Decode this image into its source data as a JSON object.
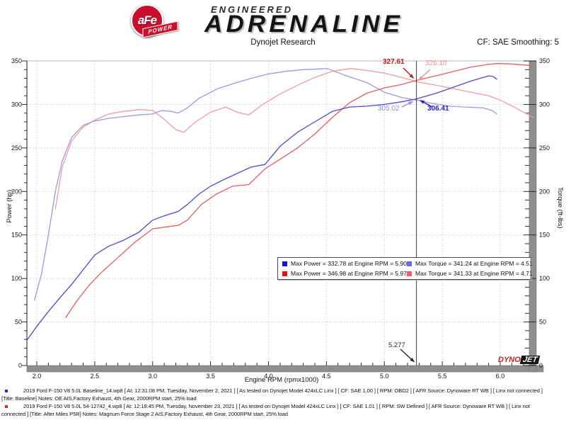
{
  "header": {
    "brand": {
      "badge_line1": "aFe",
      "badge_line2": "POWER",
      "engineered": "ENGINEERED",
      "adrenaline": "ADRENALINE"
    },
    "title": "Dynojet Research",
    "correction": "CF: SAE Smoothing: 5"
  },
  "chart_data": {
    "type": "line",
    "title": "Dynojet Research",
    "xlabel": "Engine RPM (rpmx1000)",
    "ylabel_left": "Power (hp)",
    "ylabel_right": "Torque (ft-lbs)",
    "xlim": [
      1.9,
      6.33
    ],
    "ylim": [
      0,
      350
    ],
    "x_ticks": [
      "2.0",
      "2.5",
      "3.0",
      "3.5",
      "4.0",
      "4.5",
      "5.0",
      "5.5",
      "6.0"
    ],
    "y_ticks": [
      0,
      50,
      100,
      150,
      200,
      250,
      300,
      350
    ],
    "grid": "dotted",
    "legend_position": "center-box",
    "cursor": {
      "rpm": 5.277,
      "label": "5.277"
    },
    "series": [
      {
        "name": "Baseline Power",
        "unit": "hp",
        "color": "#4a4ad2",
        "legend_color": "#1414dd",
        "max_label": "Max Power = 332.78 at Engine RPM = 5.90",
        "cursor_value": "306.41",
        "points": [
          [
            1.92,
            30
          ],
          [
            2.0,
            45
          ],
          [
            2.1,
            62
          ],
          [
            2.2,
            78
          ],
          [
            2.3,
            93
          ],
          [
            2.4,
            110
          ],
          [
            2.5,
            127
          ],
          [
            2.62,
            137
          ],
          [
            2.75,
            144
          ],
          [
            2.88,
            153
          ],
          [
            3.0,
            167
          ],
          [
            3.1,
            172
          ],
          [
            3.22,
            177
          ],
          [
            3.3,
            185
          ],
          [
            3.4,
            197
          ],
          [
            3.5,
            206
          ],
          [
            3.62,
            214
          ],
          [
            3.75,
            222
          ],
          [
            3.85,
            228
          ],
          [
            3.97,
            231
          ],
          [
            4.1,
            252
          ],
          [
            4.25,
            268
          ],
          [
            4.4,
            280
          ],
          [
            4.55,
            292
          ],
          [
            4.7,
            297
          ],
          [
            4.85,
            298
          ],
          [
            5.0,
            300
          ],
          [
            5.15,
            303
          ],
          [
            5.277,
            306.4
          ],
          [
            5.45,
            313
          ],
          [
            5.6,
            320
          ],
          [
            5.75,
            327
          ],
          [
            5.9,
            332.8
          ],
          [
            5.94,
            332
          ],
          [
            5.97,
            329
          ]
        ]
      },
      {
        "name": "Baseline Torque",
        "unit": "ft-lbs",
        "color": "#9a9ae2",
        "legend_color": "#6a6ae6",
        "max_label": "Max Torque = 341.24 at Engine RPM = 4.51",
        "cursor_value": "305.02",
        "points": [
          [
            1.98,
            75
          ],
          [
            2.04,
            105
          ],
          [
            2.1,
            150
          ],
          [
            2.16,
            200
          ],
          [
            2.22,
            235
          ],
          [
            2.3,
            262
          ],
          [
            2.4,
            276
          ],
          [
            2.5,
            281
          ],
          [
            2.62,
            284
          ],
          [
            2.75,
            286
          ],
          [
            2.88,
            288
          ],
          [
            3.0,
            289
          ],
          [
            3.08,
            293
          ],
          [
            3.16,
            292
          ],
          [
            3.22,
            290
          ],
          [
            3.3,
            296
          ],
          [
            3.4,
            307
          ],
          [
            3.56,
            318
          ],
          [
            3.7,
            324
          ],
          [
            3.85,
            330
          ],
          [
            4.0,
            335
          ],
          [
            4.15,
            338
          ],
          [
            4.3,
            340
          ],
          [
            4.51,
            341.2
          ],
          [
            4.65,
            334
          ],
          [
            4.85,
            325
          ],
          [
            5.0,
            314
          ],
          [
            5.15,
            308
          ],
          [
            5.277,
            305
          ],
          [
            5.42,
            301
          ],
          [
            5.56,
            298
          ],
          [
            5.7,
            297
          ],
          [
            5.85,
            296
          ],
          [
            5.93,
            293
          ],
          [
            5.97,
            289
          ]
        ]
      },
      {
        "name": "After Power",
        "unit": "hp",
        "color": "#df5f5f",
        "legend_color": "#e01414",
        "max_label": "Max Power = 346.98 at Engine RPM = 5.97",
        "cursor_value": "327.61",
        "points": [
          [
            2.25,
            55
          ],
          [
            2.35,
            75
          ],
          [
            2.45,
            92
          ],
          [
            2.55,
            106
          ],
          [
            2.7,
            124
          ],
          [
            2.85,
            142
          ],
          [
            3.0,
            157
          ],
          [
            3.1,
            159
          ],
          [
            3.22,
            161
          ],
          [
            3.3,
            167
          ],
          [
            3.42,
            185
          ],
          [
            3.55,
            197
          ],
          [
            3.69,
            206
          ],
          [
            3.83,
            208
          ],
          [
            3.97,
            226
          ],
          [
            4.1,
            237
          ],
          [
            4.25,
            250
          ],
          [
            4.4,
            266
          ],
          [
            4.55,
            285
          ],
          [
            4.7,
            302
          ],
          [
            4.85,
            313
          ],
          [
            5.0,
            319
          ],
          [
            5.15,
            323
          ],
          [
            5.277,
            327.6
          ],
          [
            5.45,
            333
          ],
          [
            5.6,
            338
          ],
          [
            5.75,
            343
          ],
          [
            5.9,
            346
          ],
          [
            5.97,
            347
          ],
          [
            6.1,
            346.5
          ],
          [
            6.285,
            344.5
          ]
        ]
      },
      {
        "name": "After Torque",
        "unit": "ft-lbs",
        "color": "#f09c9c",
        "legend_color": "#ea6060",
        "max_label": "Max Torque = 341.33 at Engine RPM = 4.71",
        "cursor_value": "326.10",
        "points": [
          [
            2.16,
            180
          ],
          [
            2.22,
            228
          ],
          [
            2.3,
            258
          ],
          [
            2.4,
            274
          ],
          [
            2.5,
            282
          ],
          [
            2.62,
            289
          ],
          [
            2.75,
            292
          ],
          [
            2.88,
            294
          ],
          [
            3.0,
            293
          ],
          [
            3.1,
            283
          ],
          [
            3.2,
            271
          ],
          [
            3.27,
            268
          ],
          [
            3.37,
            280
          ],
          [
            3.5,
            291
          ],
          [
            3.63,
            297
          ],
          [
            3.73,
            291
          ],
          [
            3.83,
            288
          ],
          [
            3.95,
            300
          ],
          [
            4.1,
            312
          ],
          [
            4.25,
            322
          ],
          [
            4.4,
            331
          ],
          [
            4.55,
            338
          ],
          [
            4.71,
            341.3
          ],
          [
            4.85,
            339
          ],
          [
            5.0,
            336
          ],
          [
            5.15,
            331
          ],
          [
            5.277,
            326.1
          ],
          [
            5.45,
            322
          ],
          [
            5.6,
            318
          ],
          [
            5.75,
            314
          ],
          [
            5.9,
            310
          ],
          [
            6.0,
            305
          ],
          [
            6.12,
            297
          ],
          [
            6.285,
            285
          ]
        ]
      }
    ]
  },
  "footer": {
    "runs": [
      {
        "bullet_color": "#2a2ad0",
        "line1": "2019 Ford F-150 V8 5.0L Baseline_14.wp8 [ At: 12:31:08 PM, Tuesday, November 2, 2021 ] [ As tested on Dynojet Model 424xLC Linx ] [ CF: SAE 1.00 ] [ RPM: OBD2 ] [ AFR Source: Dynoware RT WB ] [ Linx not connected ]",
        "line2": "[Title: Baseline]  Notes: OE AIS,Factory Exhaust, 4th Gear, 2000RPM start, 25% load"
      },
      {
        "bullet_color": "#d22a2a",
        "line1": "2019 Ford F-150 V8 5.0L 54-12742_4.wp8 [ At: 12:18:45 PM, Tuesday, November 23, 2021 ] [ As tested on Dynojet Model 424xLC Linx ] [ CF: SAE 1.01 ] [ RPM: SW Defined ] [ AFR Source: Dynoware RT WB ] [ Linx not",
        "line2": "connected ] [Title: After Miles P5R]  Notes: Magnum Force Stage 2  AIS,Factory Exhaust, 4th Gear, 2000RPM start, 25% load"
      }
    ]
  },
  "dynojet": {
    "part1": "DYNO",
    "part2": "JET"
  }
}
